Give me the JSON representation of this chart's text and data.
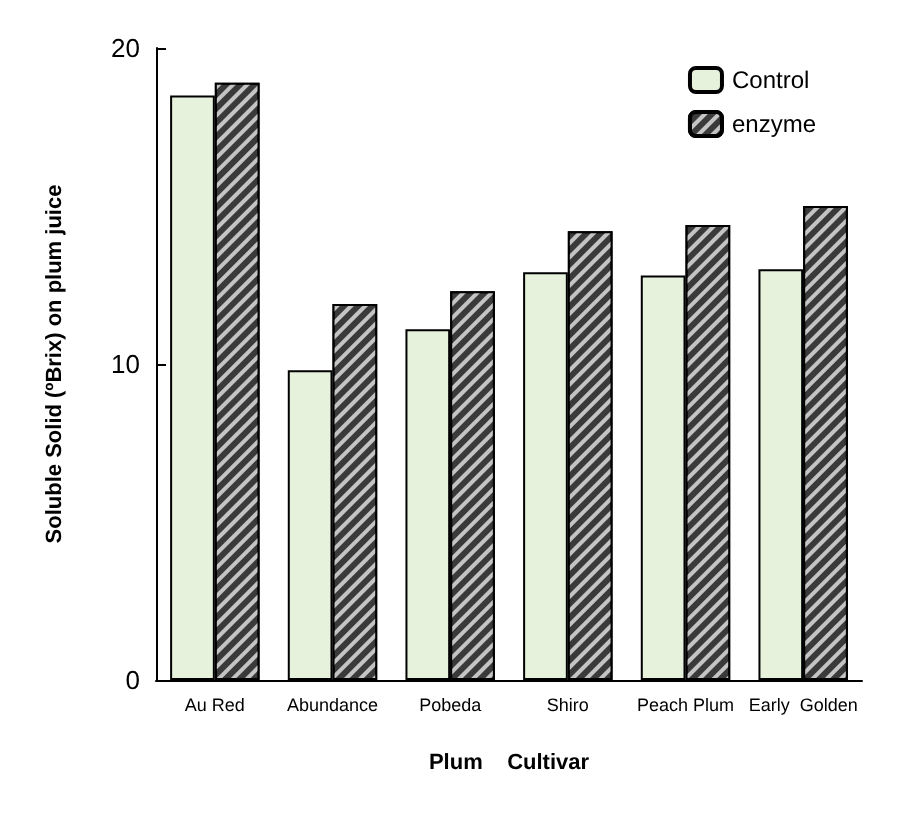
{
  "chart_data": {
    "type": "bar",
    "xlabel": "Plum    Cultivar",
    "ylabel": "Soluble Solid (ºBrix) on plum juice",
    "categories": [
      "Au Red",
      "Abundance",
      "Pobeda",
      "Shiro",
      "Peach Plum",
      "Early  Golden"
    ],
    "series": [
      {
        "name": "Control",
        "color": "#e6f2dc",
        "values": [
          18.5,
          9.8,
          11.1,
          12.9,
          12.8,
          13.0
        ]
      },
      {
        "name": "enzyme",
        "color": "#3a3a3a",
        "values": [
          18.9,
          11.9,
          12.3,
          14.2,
          14.4,
          15.0
        ]
      }
    ],
    "ylim": [
      0,
      20
    ],
    "yticks": [
      0,
      10,
      20
    ],
    "grid": false,
    "legend": "top right"
  }
}
